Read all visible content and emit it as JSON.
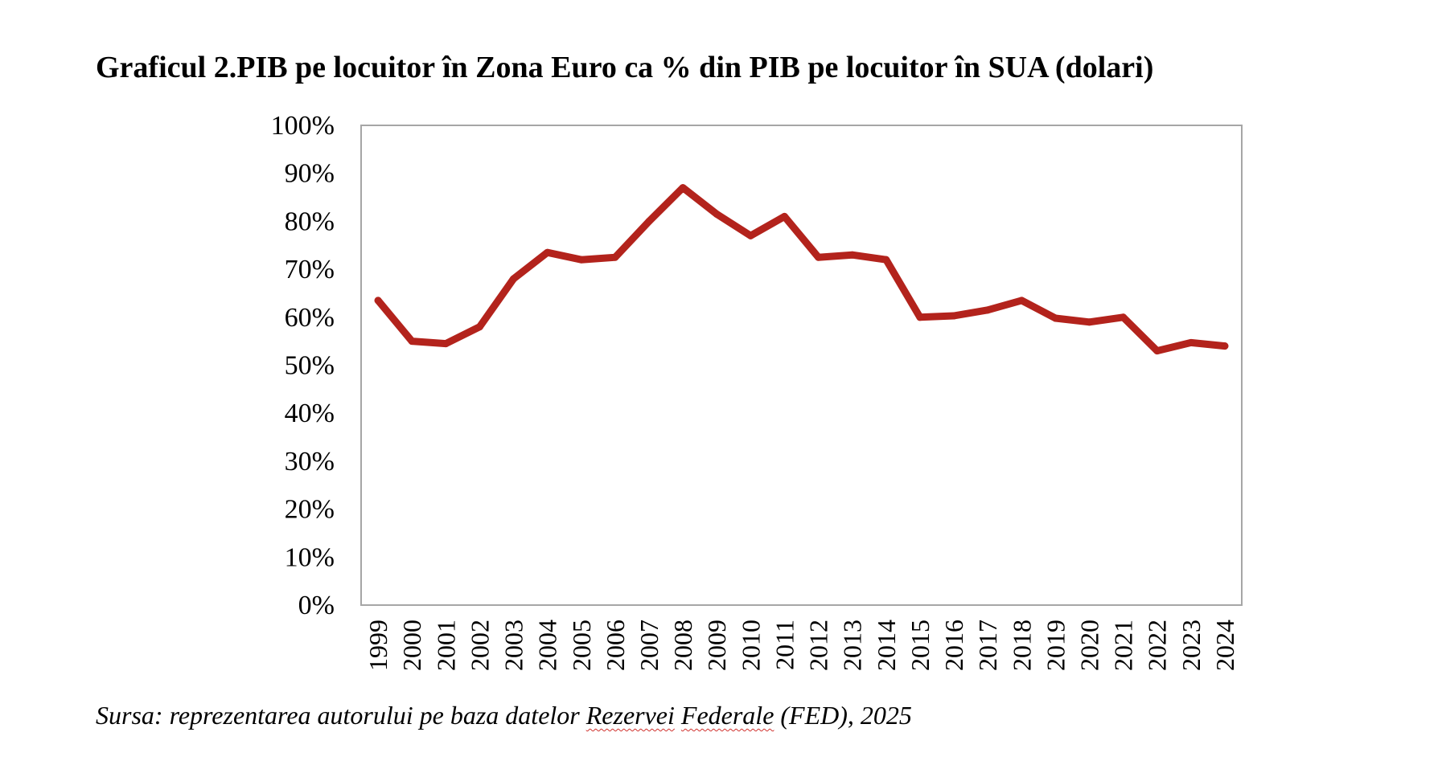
{
  "title": "Graficul 2.PIB pe locuitor în Zona Euro ca % din PIB pe locuitor în SUA (dolari)",
  "source": {
    "prefix": "Sursa: reprezentarea autorului pe baza datelor ",
    "word1": "Rezervei",
    "space": " ",
    "word2": "Federale",
    "suffix": " (FED), 2025"
  },
  "chart_data": {
    "type": "line",
    "x": [
      "1999",
      "2000",
      "2001",
      "2002",
      "2003",
      "2004",
      "2005",
      "2006",
      "2007",
      "2008",
      "2009",
      "2010",
      "2011",
      "2012",
      "2013",
      "2014",
      "2015",
      "2016",
      "2017",
      "2018",
      "2019",
      "2020",
      "2021",
      "2022",
      "2023",
      "2024"
    ],
    "series": [
      {
        "values": [
          63.5,
          55.0,
          54.5,
          58.0,
          68.0,
          73.5,
          72.0,
          72.5,
          80.0,
          87.0,
          81.5,
          77.0,
          81.0,
          72.5,
          73.0,
          72.0,
          60.0,
          60.3,
          61.5,
          63.5,
          59.8,
          59.0,
          60.0,
          53.0,
          54.7,
          54.0
        ]
      }
    ],
    "ylim": [
      0,
      100
    ],
    "yticks": [
      "0%",
      "10%",
      "20%",
      "30%",
      "40%",
      "50%",
      "60%",
      "70%",
      "80%",
      "90%",
      "100%"
    ],
    "grid": false,
    "legend": "none",
    "line_color": "#b3231c",
    "frame_color": "#a6a6a6"
  }
}
